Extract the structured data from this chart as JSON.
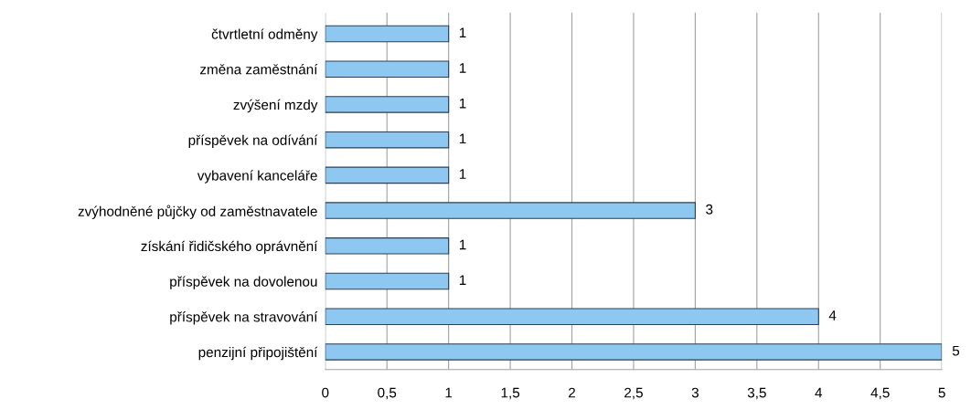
{
  "chart_data": {
    "type": "bar",
    "orientation": "horizontal",
    "categories": [
      "čtvrtletní odměny",
      "změna zaměstnání",
      "zvýšení mzdy",
      "příspěvek na odívání",
      "vybavení kanceláře",
      "zvýhodněné půjčky od zaměstnavatele",
      "získání řidičského oprávnění",
      "příspěvek na dovolenou",
      "příspěvek na stravování",
      "penzijní připojištění"
    ],
    "values": [
      1,
      1,
      1,
      1,
      1,
      3,
      1,
      1,
      4,
      5
    ],
    "color": "#8ec8f0",
    "xlim": [
      0,
      5
    ],
    "xticks": [
      0,
      {
        "value": 0.5,
        "label": "0,5"
      },
      1,
      {
        "value": 1.5,
        "label": "1,5"
      },
      2,
      {
        "value": 2.5,
        "label": "2,5"
      },
      3,
      {
        "value": 3.5,
        "label": "3,5"
      },
      4,
      {
        "value": 4.5,
        "label": "4,5"
      },
      5
    ],
    "grid": "x",
    "data_labels": true
  }
}
